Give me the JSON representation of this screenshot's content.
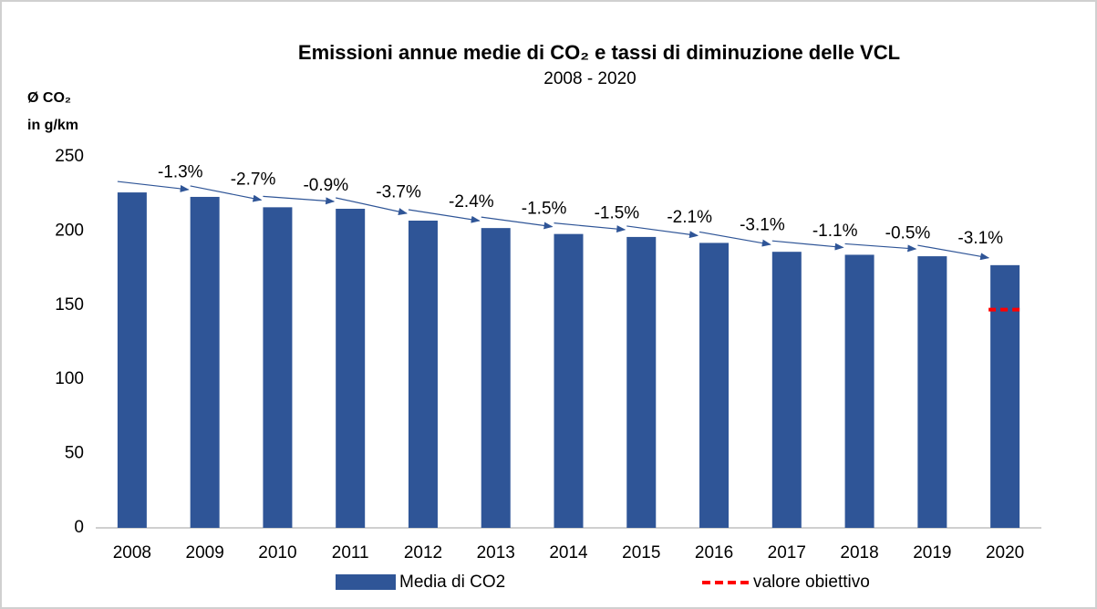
{
  "chart_data": {
    "type": "bar",
    "title": "Emissioni annue medie di CO₂ e tassi di diminuzione delle VCL",
    "subtitle": "2008 - 2020",
    "ylabel": [
      "Ø CO₂",
      "in g/km"
    ],
    "categories": [
      "2008",
      "2009",
      "2010",
      "2011",
      "2012",
      "2013",
      "2014",
      "2015",
      "2016",
      "2017",
      "2018",
      "2019",
      "2020"
    ],
    "series": [
      {
        "name": "Media di CO2",
        "color": "#2f5597",
        "values": [
          226,
          223,
          216,
          215,
          207,
          202,
          198,
          196,
          192,
          186,
          184,
          183,
          177
        ]
      },
      {
        "name": "valore obiettivo",
        "color": "#ff0000",
        "dashed": true,
        "values": [
          null,
          null,
          null,
          null,
          null,
          null,
          null,
          null,
          null,
          null,
          null,
          null,
          147
        ]
      }
    ],
    "annotations": [
      "-1.3%",
      "-2.7%",
      "-0.9%",
      "-3.7%",
      "-2.4%",
      "-1.5%",
      "-1.5%",
      "-2.1%",
      "-3.1%",
      "-1.1%",
      "-0.5%",
      "-3.1%"
    ],
    "ylim": [
      0,
      250
    ],
    "yticks": [
      0,
      50,
      100,
      150,
      200,
      250
    ],
    "grid": false
  }
}
